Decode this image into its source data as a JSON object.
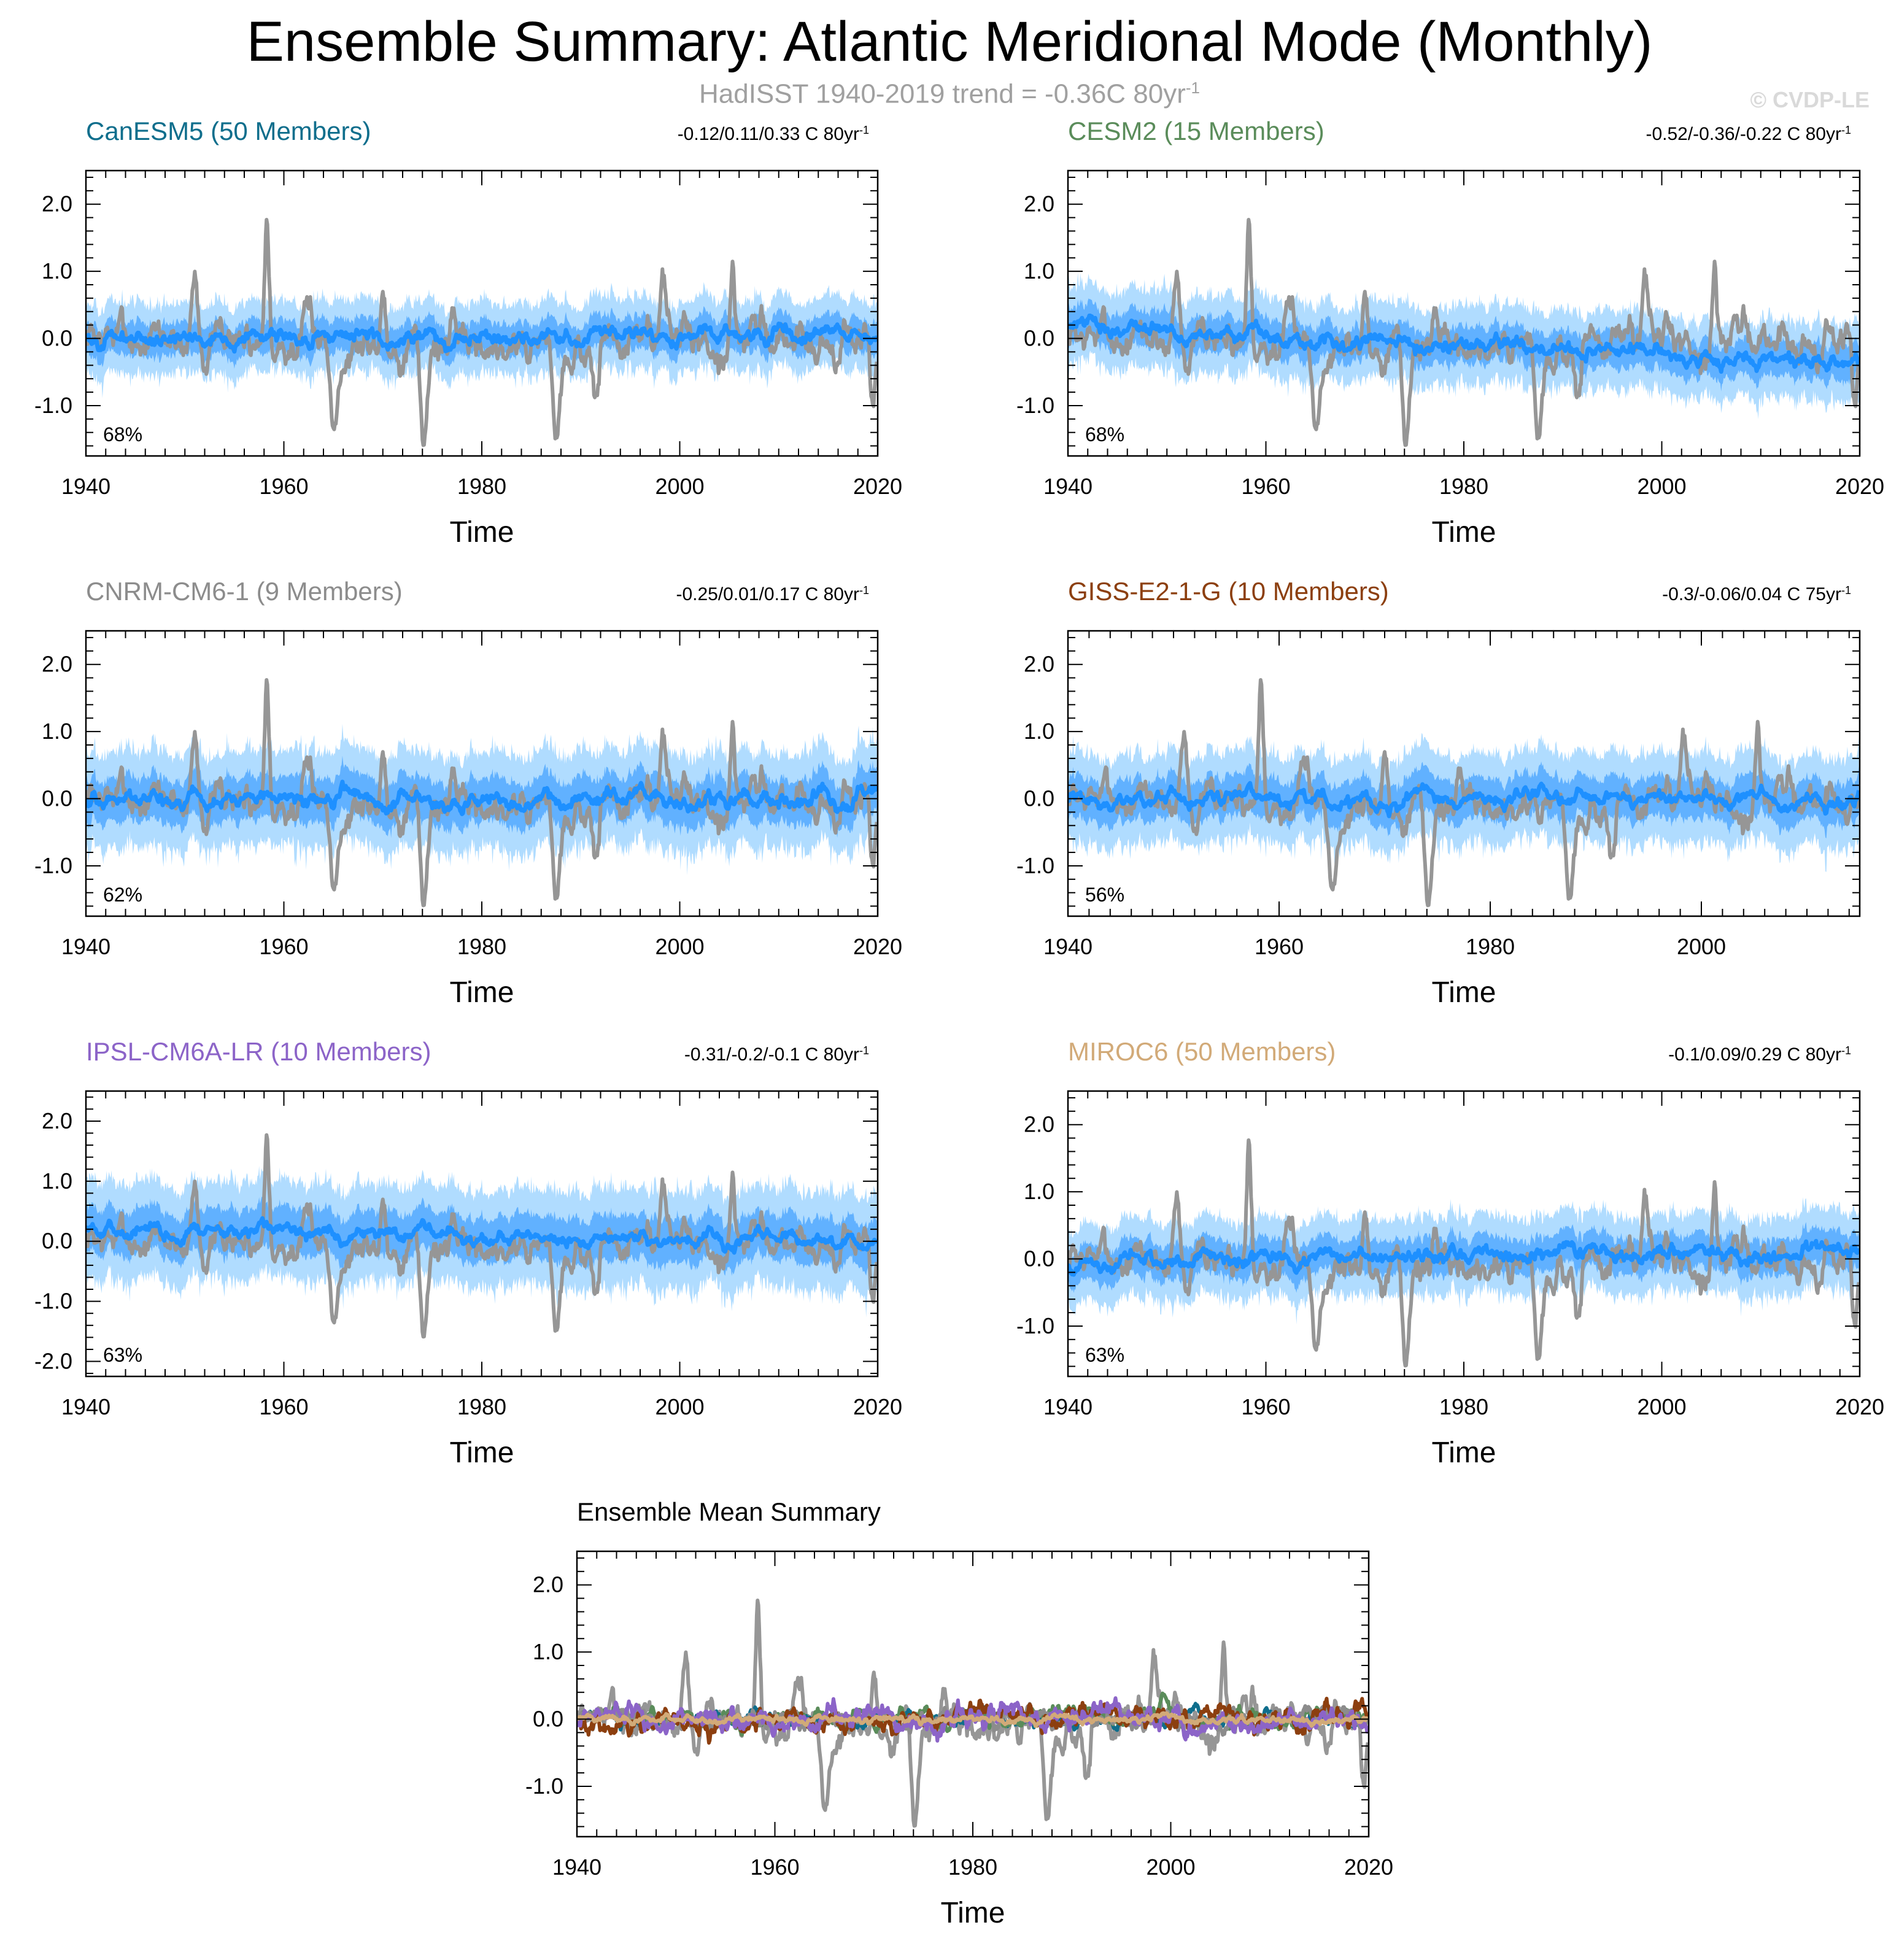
{
  "title": "Ensemble Summary: Atlantic Meridional Mode (Monthly)",
  "subtitle": {
    "text": "HadISST 1940-2019 trend = -0.36C 80yr",
    "superscript": "-1"
  },
  "copyright": "© CVDP-LE",
  "colors": {
    "observed": "#969696",
    "ensemble_mean": "#1e90ff",
    "spread_outer": "#b0dcff",
    "spread_inner": "#47a3ff",
    "canesm5": "#0f6e8c",
    "cesm2": "#5a8c5a",
    "cnrm": "#8c8c8c",
    "giss": "#8c3f0f",
    "ipsl": "#8c64c8",
    "miroc6": "#d2aa78"
  },
  "chart_data": [
    {
      "type": "line",
      "panel": "CanESM5",
      "title": "CanESM5 (50 Members)",
      "title_color": "#0f6e8c",
      "trend": {
        "text": "-0.12/0.11/0.33 C 80yr",
        "superscript": "-1"
      },
      "percent": "68%",
      "xlabel": "Time",
      "x_ticks": [
        1940,
        1960,
        1980,
        2000,
        2020
      ],
      "y_ticks": [
        2.0,
        1.0,
        0.0,
        -1.0
      ],
      "y_tick_labels": [
        "2.0",
        "1.0",
        "0.0",
        "-1.0"
      ],
      "xlim": [
        1940,
        2020
      ],
      "ylim": [
        -1.75,
        2.5
      ],
      "series": [
        {
          "name": "HadISST observed",
          "style": "observed"
        },
        {
          "name": "Ensemble mean",
          "style": "ensemble_mean",
          "offset": 0.0,
          "trend_end": 0.1
        },
        {
          "name": "Ensemble spread",
          "style": "spread",
          "half_width": 0.55
        }
      ]
    },
    {
      "type": "line",
      "panel": "CESM2",
      "title": "CESM2 (15 Members)",
      "title_color": "#5a8c5a",
      "trend": {
        "text": "-0.52/-0.36/-0.22 C 80yr",
        "superscript": "-1"
      },
      "percent": "68%",
      "xlabel": "Time",
      "x_ticks": [
        1940,
        1960,
        1980,
        2000,
        2020
      ],
      "y_ticks": [
        2.0,
        1.0,
        0.0,
        -1.0
      ],
      "y_tick_labels": [
        "2.0",
        "1.0",
        "0.0",
        "-1.0"
      ],
      "xlim": [
        1940,
        2020
      ],
      "ylim": [
        -1.75,
        2.5
      ],
      "series": [
        {
          "name": "HadISST observed",
          "style": "observed"
        },
        {
          "name": "Ensemble mean",
          "style": "ensemble_mean",
          "offset": 0.2,
          "trend_end": -0.4
        },
        {
          "name": "Ensemble spread",
          "style": "spread",
          "half_width": 0.6
        }
      ]
    },
    {
      "type": "line",
      "panel": "CNRM-CM6-1",
      "title": "CNRM-CM6-1 (9 Members)",
      "title_color": "#8c8c8c",
      "trend": {
        "text": "-0.25/0.01/0.17 C 80yr",
        "superscript": "-1"
      },
      "percent": "62%",
      "xlabel": "Time",
      "x_ticks": [
        1940,
        1960,
        1980,
        2000,
        2020
      ],
      "y_ticks": [
        2.0,
        1.0,
        0.0,
        -1.0
      ],
      "y_tick_labels": [
        "2.0",
        "1.0",
        "0.0",
        "-1.0"
      ],
      "xlim": [
        1940,
        2020
      ],
      "ylim": [
        -1.75,
        2.5
      ],
      "series": [
        {
          "name": "HadISST observed",
          "style": "observed"
        },
        {
          "name": "Ensemble mean",
          "style": "ensemble_mean",
          "offset": 0.0,
          "trend_end": 0.0
        },
        {
          "name": "Ensemble spread",
          "style": "spread",
          "half_width": 0.75
        }
      ]
    },
    {
      "type": "line",
      "panel": "GISS-E2-1-G",
      "title": "GISS-E2-1-G (10 Members)",
      "title_color": "#8c3f0f",
      "trend": {
        "text": "-0.3/-0.06/0.04 C 75yr",
        "superscript": "-1"
      },
      "percent": "56%",
      "xlabel": "Time",
      "x_ticks": [
        1940,
        1960,
        1980,
        2000
      ],
      "y_ticks": [
        2.0,
        1.0,
        0.0,
        -1.0
      ],
      "y_tick_labels": [
        "2.0",
        "1.0",
        "0.0",
        "-1.0"
      ],
      "xlim": [
        1940,
        2015
      ],
      "ylim": [
        -1.75,
        2.5
      ],
      "series": [
        {
          "name": "HadISST observed",
          "style": "observed"
        },
        {
          "name": "Ensemble mean",
          "style": "ensemble_mean",
          "offset": 0.0,
          "trend_end": 0.0
        },
        {
          "name": "Ensemble spread",
          "style": "spread",
          "half_width": 0.7
        }
      ]
    },
    {
      "type": "line",
      "panel": "IPSL-CM6A-LR",
      "title": "IPSL-CM6A-LR (10 Members)",
      "title_color": "#8c64c8",
      "trend": {
        "text": "-0.31/-0.2/-0.1 C 80yr",
        "superscript": "-1"
      },
      "percent": "63%",
      "xlabel": "Time",
      "x_ticks": [
        1940,
        1960,
        1980,
        2000,
        2020
      ],
      "y_ticks": [
        2.0,
        1.0,
        0.0,
        -1.0,
        -2.0
      ],
      "y_tick_labels": [
        "2.0",
        "1.0",
        "0.0",
        "-1.0",
        "-2.0"
      ],
      "xlim": [
        1940,
        2020
      ],
      "ylim": [
        -2.25,
        2.5
      ],
      "series": [
        {
          "name": "HadISST observed",
          "style": "observed"
        },
        {
          "name": "Ensemble mean",
          "style": "ensemble_mean",
          "offset": 0.2,
          "trend_end": 0.0
        },
        {
          "name": "Ensemble spread",
          "style": "spread",
          "half_width": 0.85
        }
      ]
    },
    {
      "type": "line",
      "panel": "MIROC6",
      "title": "MIROC6 (50 Members)",
      "title_color": "#d2aa78",
      "trend": {
        "text": "-0.1/0.09/0.29 C 80yr",
        "superscript": "-1"
      },
      "percent": "63%",
      "xlabel": "Time",
      "x_ticks": [
        1940,
        1960,
        1980,
        2000,
        2020
      ],
      "y_ticks": [
        2.0,
        1.0,
        0.0,
        -1.0
      ],
      "y_tick_labels": [
        "2.0",
        "1.0",
        "0.0",
        "-1.0"
      ],
      "xlim": [
        1940,
        2020
      ],
      "ylim": [
        -1.75,
        2.5
      ],
      "series": [
        {
          "name": "HadISST observed",
          "style": "observed"
        },
        {
          "name": "Ensemble mean",
          "style": "ensemble_mean",
          "offset": -0.05,
          "trend_end": 0.1
        },
        {
          "name": "Ensemble spread",
          "style": "spread",
          "half_width": 0.6
        }
      ]
    },
    {
      "type": "line",
      "panel": "Ensemble Mean Summary",
      "title": "Ensemble Mean Summary",
      "title_color": "#000000",
      "xlabel": "Time",
      "x_ticks": [
        1940,
        1960,
        1980,
        2000,
        2020
      ],
      "y_ticks": [
        2.0,
        1.0,
        0.0,
        -1.0
      ],
      "y_tick_labels": [
        "2.0",
        "1.0",
        "0.0",
        "-1.0"
      ],
      "xlim": [
        1940,
        2020
      ],
      "ylim": [
        -1.75,
        2.5
      ],
      "series": [
        {
          "name": "HadISST observed",
          "style": "observed"
        },
        {
          "name": "CanESM5",
          "color": "#0f6e8c",
          "amp": 0.12
        },
        {
          "name": "CESM2",
          "color": "#5a8c5a",
          "amp": 0.15
        },
        {
          "name": "CNRM-CM6-1",
          "color": "#8c8c8c",
          "amp": 0.15
        },
        {
          "name": "GISS-E2-1-G",
          "color": "#8c3f0f",
          "amp": 0.18
        },
        {
          "name": "IPSL-CM6A-LR",
          "color": "#8c64c8",
          "amp": 0.2
        },
        {
          "name": "MIROC6",
          "color": "#d2aa78",
          "amp": 0.06
        }
      ]
    }
  ]
}
